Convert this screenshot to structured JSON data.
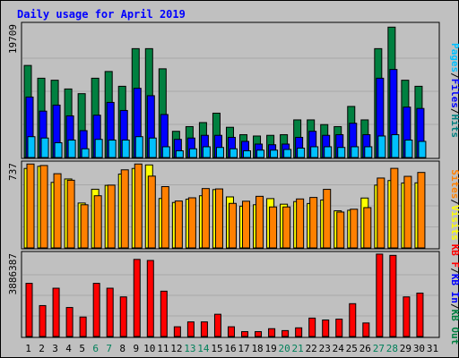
{
  "chart_data": {
    "type": "bar",
    "title": "Daily usage for April 2019",
    "categories": [
      "1",
      "2",
      "3",
      "4",
      "5",
      "6",
      "7",
      "8",
      "9",
      "10",
      "11",
      "12",
      "13",
      "14",
      "15",
      "16",
      "17",
      "18",
      "19",
      "20",
      "21",
      "22",
      "23",
      "24",
      "25",
      "26",
      "27",
      "28",
      "29",
      "30",
      "31"
    ],
    "weekend_days": [
      "6",
      "7",
      "13",
      "14",
      "20",
      "21",
      "27",
      "28"
    ],
    "panels": [
      {
        "name": "hits-files-pages",
        "max_label": "19709",
        "ylim": [
          0,
          19709
        ],
        "axis_legend": [
          {
            "text": "Pages",
            "color": "#00c0ff"
          },
          {
            "text": "/",
            "color": "#000000"
          },
          {
            "text": "Files",
            "color": "#0000ff"
          },
          {
            "text": "/",
            "color": "#000000"
          },
          {
            "text": "Hits",
            "color": "#008080"
          }
        ],
        "series": [
          {
            "name": "Hits",
            "color": "#008040",
            "values": [
              13700,
              11800,
              11500,
              10200,
              9500,
              11800,
              12800,
              10600,
              16200,
              16200,
              13200,
              3900,
              4600,
              5200,
              6600,
              4500,
              3400,
              3200,
              3300,
              3400,
              5600,
              5600,
              4900,
              4600,
              7600,
              5600,
              16200,
              19400,
              11500,
              10600,
              0
            ]
          },
          {
            "name": "Files",
            "color": "#0000ff",
            "values": [
              9000,
              6900,
              7800,
              6200,
              4000,
              6300,
              8200,
              7000,
              10300,
              9200,
              6400,
              2700,
              2900,
              3300,
              3300,
              3000,
              2400,
              2000,
              1900,
              2000,
              3000,
              3900,
              3300,
              3400,
              5100,
              3400,
              11800,
              13100,
              7500,
              7300,
              0
            ]
          },
          {
            "name": "Pages",
            "color": "#00c0ff",
            "values": [
              3100,
              2900,
              2200,
              2600,
              1300,
              2700,
              2600,
              2600,
              3100,
              2900,
              1600,
              1000,
              1300,
              1600,
              1500,
              1300,
              1000,
              1100,
              1100,
              1200,
              1400,
              1600,
              1600,
              1500,
              1600,
              1600,
              3200,
              3400,
              2600,
              2400,
              0
            ]
          }
        ]
      },
      {
        "name": "visits-sites",
        "max_label": "737",
        "ylim": [
          0,
          737
        ],
        "axis_legend": [
          {
            "text": "Sites",
            "color": "#ff8000"
          },
          {
            "text": "/",
            "color": "#000000"
          },
          {
            "text": "Visits",
            "color": "#ffff00"
          }
        ],
        "series": [
          {
            "name": "Visits",
            "color": "#ffff00",
            "values": [
              696,
              715,
              574,
              604,
              393,
              514,
              548,
              647,
              696,
              727,
              433,
              398,
              427,
              457,
              511,
              447,
              366,
              378,
              432,
              383,
              406,
              389,
              420,
              325,
              330,
              437,
              550,
              590,
              569,
              570,
              0
            ]
          },
          {
            "name": "Sites",
            "color": "#ff8000",
            "values": [
              735,
              722,
              650,
              593,
              378,
              457,
              550,
              684,
              735,
              629,
              537,
              411,
              439,
              520,
              517,
              390,
              409,
              452,
              359,
              359,
              429,
              442,
              513,
              314,
              339,
              353,
              612,
              697,
              627,
              661,
              0
            ]
          }
        ]
      },
      {
        "name": "kbf-kbin-kbout",
        "max_label": "3886387",
        "ylim": [
          0,
          3886387
        ],
        "axis_legend": [
          {
            "text": "KB F",
            "color": "#ff0000"
          },
          {
            "text": "/",
            "color": "#000000"
          },
          {
            "text": "KB In",
            "color": "#0000ff"
          },
          {
            "text": "/",
            "color": "#000000"
          },
          {
            "text": "KB Out",
            "color": "#008040"
          }
        ],
        "series": [
          {
            "name": "KB F",
            "color": "#ff0000",
            "values": [
              2510000,
              1460000,
              2280000,
              1370000,
              920000,
              2510000,
              2280000,
              1870000,
              3640000,
              3590000,
              2140000,
              460000,
              690000,
              690000,
              1050000,
              460000,
              230000,
              230000,
              370000,
              280000,
              410000,
              870000,
              780000,
              820000,
              1550000,
              640000,
              3890000,
              3830000,
              1870000,
              2050000,
              0
            ]
          }
        ]
      }
    ]
  }
}
